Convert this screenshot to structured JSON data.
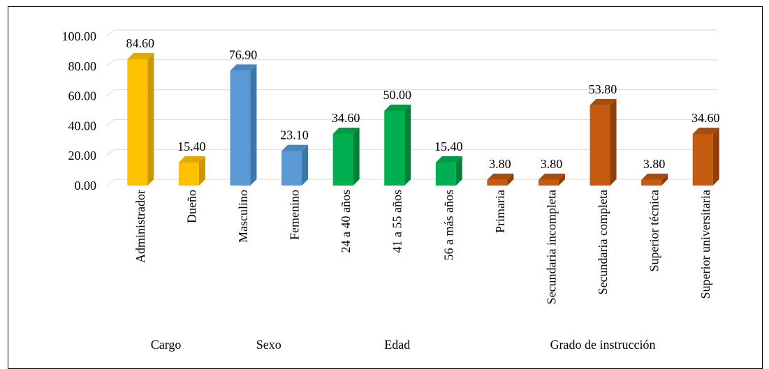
{
  "chart_data": {
    "type": "bar",
    "title": "",
    "xlabel": "",
    "ylabel": "",
    "ylim": [
      0,
      100
    ],
    "yticks": [
      "0.00",
      "20.00",
      "40.00",
      "60.00",
      "80.00",
      "100.00"
    ],
    "grid": true,
    "bar_style": "3d",
    "categories": [
      {
        "label": "Administrador",
        "value": 84.6,
        "value_label": "84.60",
        "group": "Cargo"
      },
      {
        "label": "Dueño",
        "value": 15.4,
        "value_label": "15.40",
        "group": "Cargo"
      },
      {
        "label": "Masculino",
        "value": 76.9,
        "value_label": "76.90",
        "group": "Sexo"
      },
      {
        "label": "Femenino",
        "value": 23.1,
        "value_label": "23.10",
        "group": "Sexo"
      },
      {
        "label": "24 a 40 años",
        "value": 34.6,
        "value_label": "34.60",
        "group": "Edad"
      },
      {
        "label": "41 a 55 años",
        "value": 50.0,
        "value_label": "50.00",
        "group": "Edad"
      },
      {
        "label": "56 a más años",
        "value": 15.4,
        "value_label": "15.40",
        "group": "Edad"
      },
      {
        "label": "Primaria",
        "value": 3.8,
        "value_label": "3.80",
        "group": "Grado de instrucción"
      },
      {
        "label": "Secundaria incompleta",
        "value": 3.8,
        "value_label": "3.80",
        "group": "Grado de instrucción"
      },
      {
        "label": "Secundaria completa",
        "value": 53.8,
        "value_label": "53.80",
        "group": "Grado de instrucción"
      },
      {
        "label": "Superior técnica",
        "value": 3.8,
        "value_label": "3.80",
        "group": "Grado de instrucción"
      },
      {
        "label": "Superior universitaria",
        "value": 34.6,
        "value_label": "34.60",
        "group": "Grado de instrucción"
      }
    ],
    "groups": [
      {
        "name": "Cargo",
        "color": "#FFC000",
        "side": "#C99700",
        "top": "#E0AA00"
      },
      {
        "name": "Sexo",
        "color": "#5B9BD5",
        "side": "#3F76A8",
        "top": "#4A85BC"
      },
      {
        "name": "Edad",
        "color": "#00B050",
        "side": "#00813A",
        "top": "#009A46"
      },
      {
        "name": "Grado de instrucción",
        "color": "#C55A11",
        "side": "#8E3F0B",
        "top": "#A84D0E"
      }
    ]
  }
}
